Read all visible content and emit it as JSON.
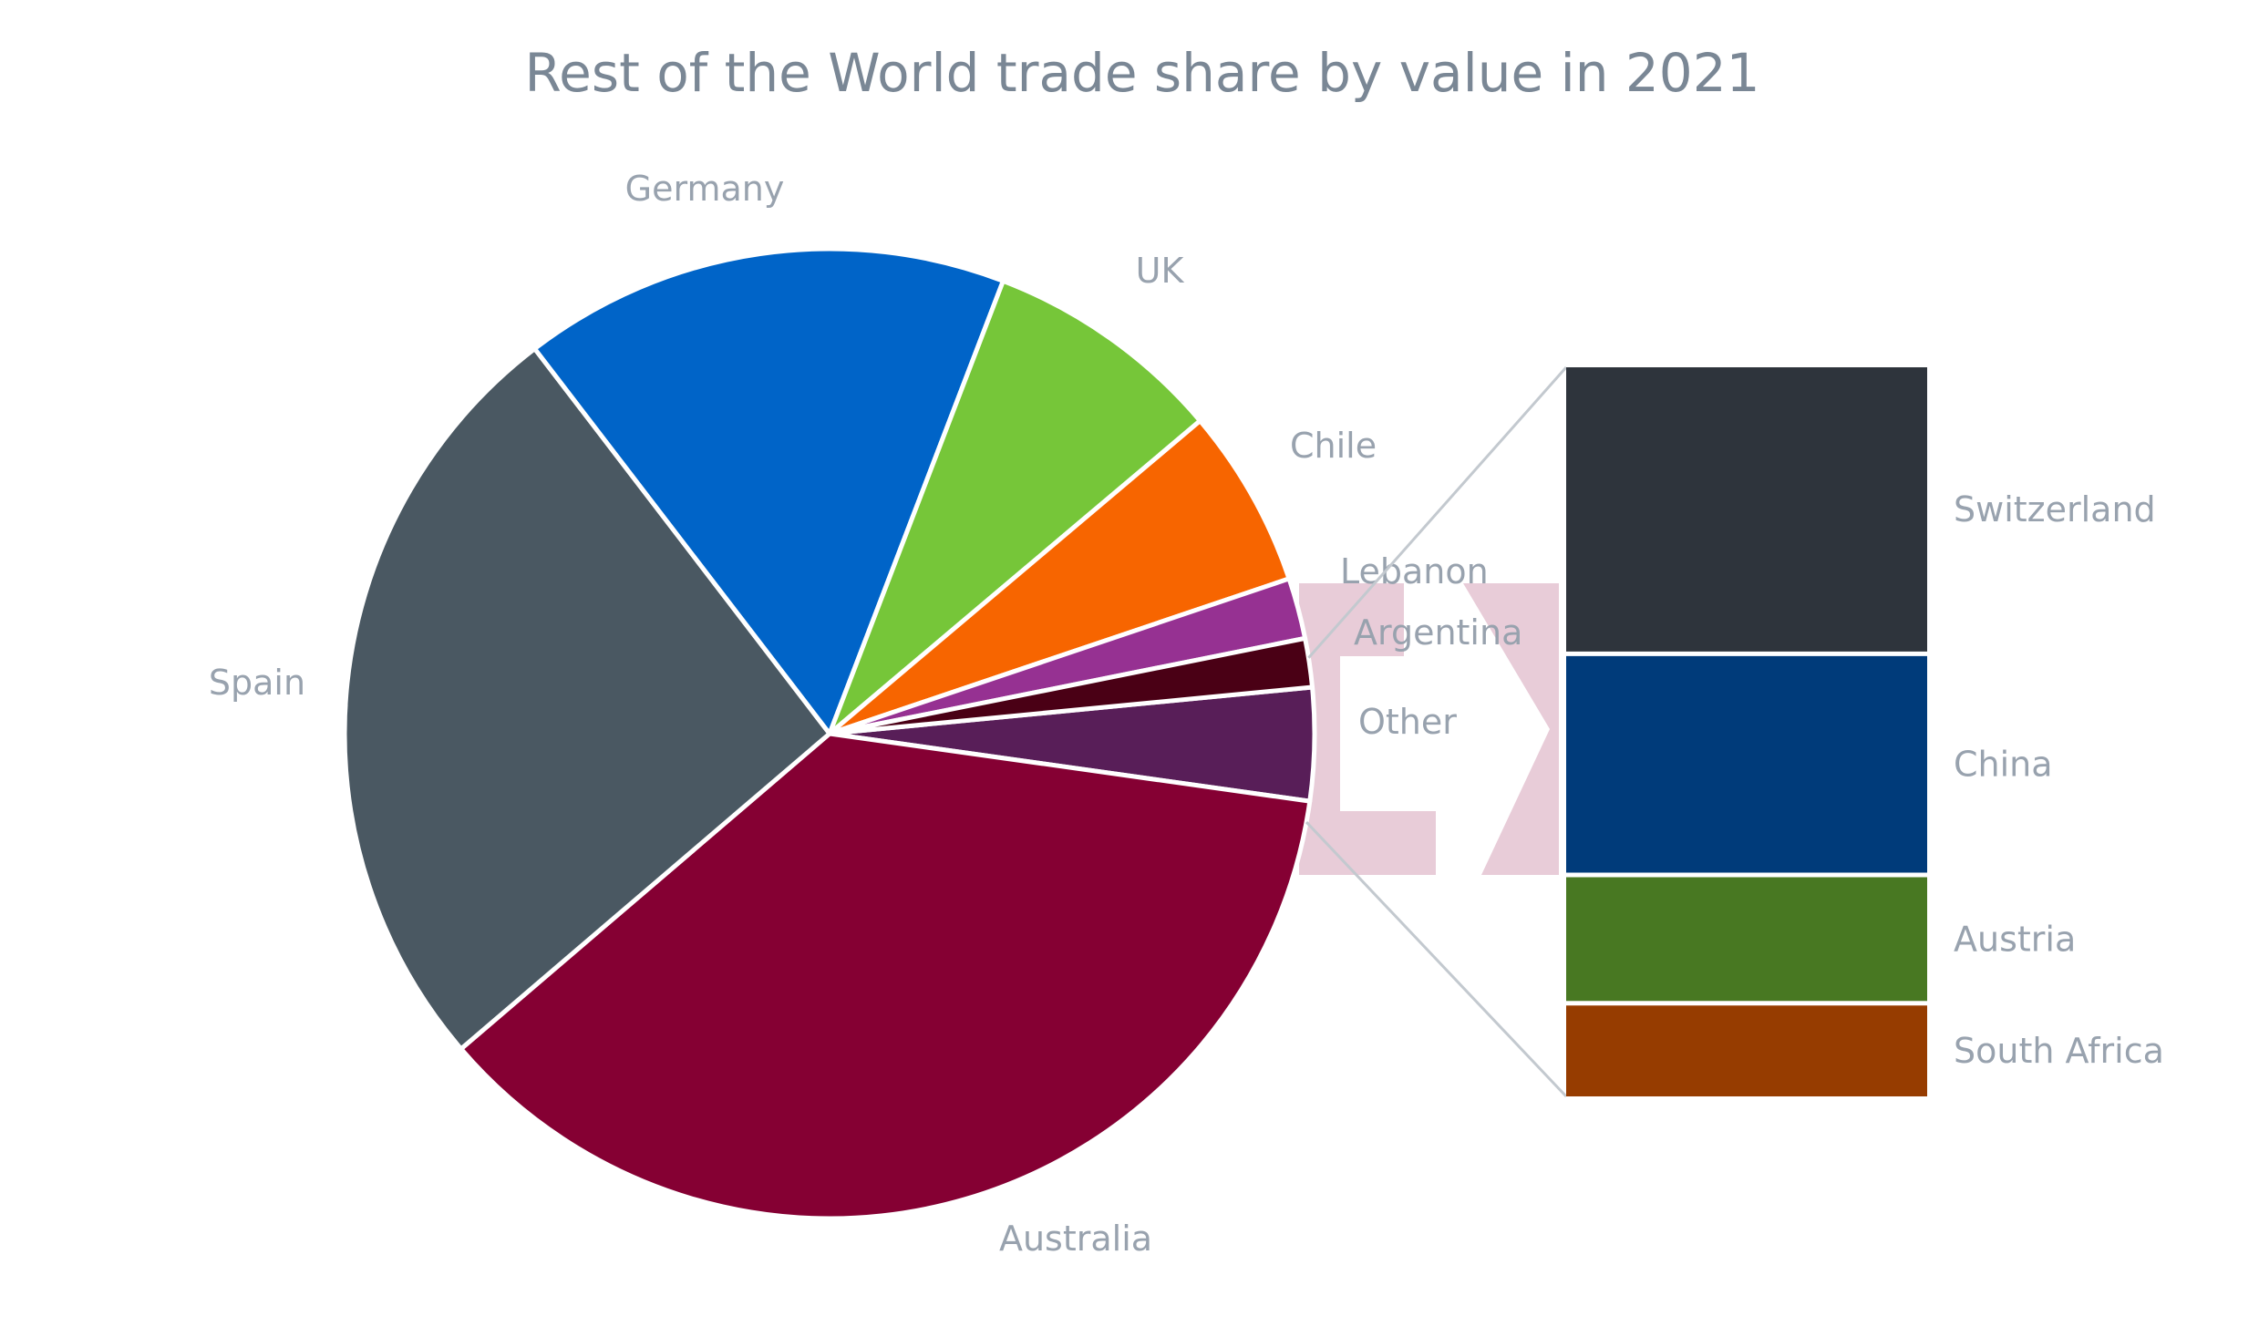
{
  "chart_data": {
    "type": "pie",
    "subtype": "bar-of-pie",
    "title": "Rest of the World trade share by value in 2021",
    "pie": {
      "slices": [
        {
          "label": "Australia",
          "value": 36.0,
          "color": "#850033"
        },
        {
          "label": "Spain",
          "value": 25.5,
          "color": "#4a5862"
        },
        {
          "label": "Germany",
          "value": 16.0,
          "color": "#0064c8"
        },
        {
          "label": "UK",
          "value": 7.9,
          "color": "#76c639"
        },
        {
          "label": "Chile",
          "value": 5.9,
          "color": "#f76500"
        },
        {
          "label": "Lebanon",
          "value": 2.0,
          "color": "#963192"
        },
        {
          "label": "Argentina",
          "value": 1.6,
          "color": "#4a0015"
        },
        {
          "label": "Other",
          "value": 3.7,
          "color": "#581e58"
        }
      ],
      "exploded_slice": "Other"
    },
    "breakdown_bar": {
      "of": "Other",
      "segments": [
        {
          "label": "Switzerland",
          "value": 1.47,
          "color": "#2e343c"
        },
        {
          "label": "China",
          "value": 1.12,
          "color": "#003b7a"
        },
        {
          "label": "Austria",
          "value": 0.64,
          "color": "#487822"
        },
        {
          "label": "South Africa",
          "value": 0.47,
          "color": "#963c00"
        }
      ]
    },
    "legend": "none",
    "connector_color": "#c3c9cf",
    "watermark_color": "#e8ccd8"
  }
}
